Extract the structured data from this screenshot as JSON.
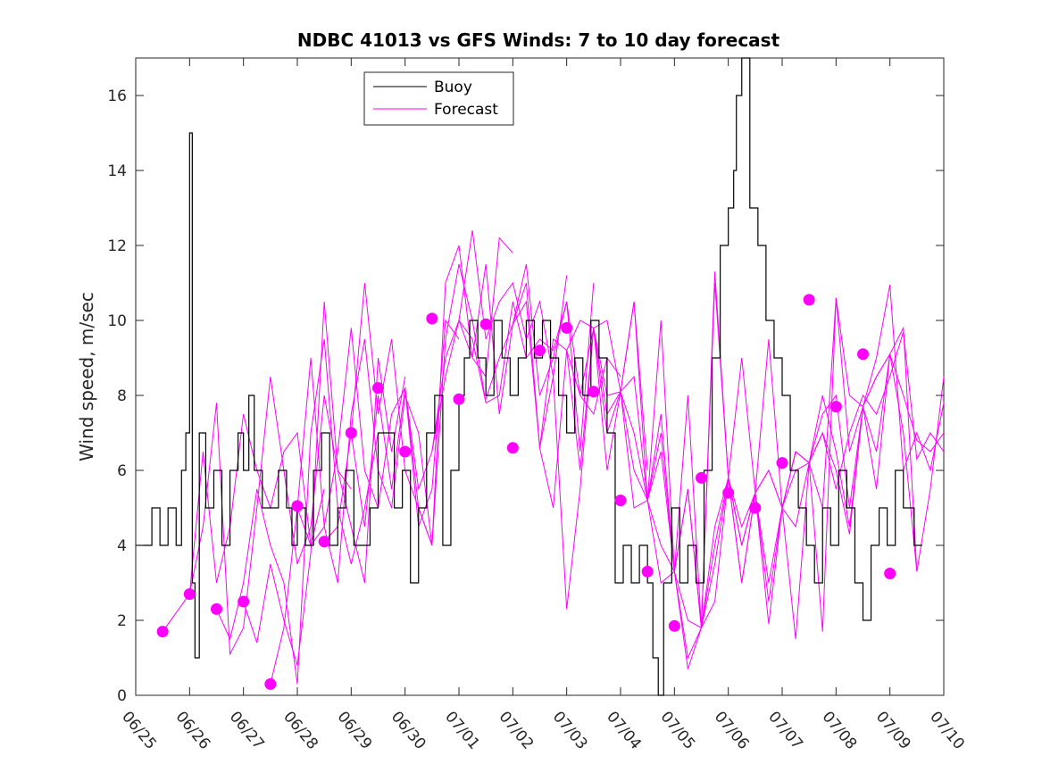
{
  "chart_data": {
    "type": "line",
    "title": "NDBC 41013 vs GFS Winds: 7 to 10 day forecast",
    "xlabel": "",
    "ylabel": "Wind speed, m/sec",
    "xlim": [
      0,
      15
    ],
    "ylim": [
      0,
      17
    ],
    "x_tick_values": [
      0,
      1,
      2,
      3,
      4,
      5,
      6,
      7,
      8,
      9,
      10,
      11,
      12,
      13,
      14,
      15
    ],
    "x_tick_labels": [
      "06/25",
      "06/26",
      "06/27",
      "06/28",
      "06/29",
      "06/30",
      "07/01",
      "07/02",
      "07/03",
      "07/04",
      "07/05",
      "07/06",
      "07/07",
      "07/08",
      "07/09",
      "07/10"
    ],
    "y_tick_values": [
      0,
      2,
      4,
      6,
      8,
      10,
      12,
      14,
      16
    ],
    "y_tick_labels": [
      "0",
      "2",
      "4",
      "6",
      "8",
      "10",
      "12",
      "14",
      "16"
    ],
    "grid": false,
    "legend": {
      "placement": "top-left",
      "entries": [
        {
          "name": "Buoy",
          "color": "#000000"
        },
        {
          "name": "Forecast",
          "color": "#ff00ff"
        }
      ]
    },
    "series": [
      {
        "name": "Buoy",
        "color": "#000000",
        "x": [
          0.0,
          0.15,
          0.3,
          0.45,
          0.6,
          0.75,
          0.85,
          0.93,
          1.0,
          1.05,
          1.1,
          1.18,
          1.3,
          1.45,
          1.6,
          1.75,
          1.9,
          2.0,
          2.1,
          2.2,
          2.35,
          2.5,
          2.65,
          2.8,
          2.9,
          3.0,
          3.15,
          3.3,
          3.45,
          3.6,
          3.75,
          3.9,
          4.05,
          4.2,
          4.35,
          4.5,
          4.65,
          4.8,
          4.95,
          5.1,
          5.25,
          5.4,
          5.55,
          5.7,
          5.85,
          6.0,
          6.1,
          6.2,
          6.35,
          6.5,
          6.65,
          6.8,
          6.95,
          7.1,
          7.25,
          7.4,
          7.55,
          7.7,
          7.85,
          8.0,
          8.15,
          8.3,
          8.45,
          8.6,
          8.75,
          8.9,
          9.05,
          9.2,
          9.35,
          9.5,
          9.6,
          9.7,
          9.8,
          9.95,
          10.1,
          10.25,
          10.4,
          10.55,
          10.7,
          10.85,
          11.0,
          11.1,
          11.15,
          11.25,
          11.4,
          11.55,
          11.7,
          11.85,
          12.0,
          12.15,
          12.3,
          12.45,
          12.6,
          12.75,
          12.9,
          13.05,
          13.2,
          13.35,
          13.5,
          13.65,
          13.8,
          13.95,
          14.1,
          14.25,
          14.45,
          14.6
        ],
        "values": [
          4,
          4,
          5,
          4,
          5,
          4,
          6,
          7,
          15,
          3,
          1,
          7,
          5,
          6,
          4,
          6,
          7,
          6,
          8,
          6,
          5,
          5,
          6,
          5,
          4,
          5,
          4,
          6,
          7,
          4,
          5,
          6,
          4,
          4,
          5,
          7,
          7,
          5,
          6,
          3,
          5,
          7,
          8,
          4,
          6,
          8,
          9,
          10,
          9,
          8,
          10,
          9,
          8,
          9,
          10,
          9,
          10,
          9,
          8,
          7,
          9,
          8,
          10,
          9,
          7,
          3,
          4,
          3,
          4,
          3,
          1,
          0,
          3,
          5,
          3,
          4,
          3,
          6,
          9,
          12,
          13,
          14,
          16,
          17,
          13,
          12,
          10,
          9,
          8,
          6,
          5,
          4,
          3,
          5,
          4,
          6,
          5,
          3,
          2,
          4,
          5,
          4,
          6,
          5,
          4,
          4
        ]
      },
      {
        "name": "Forecast",
        "color": "#ff00ff",
        "x": [
          0.5,
          1.0,
          1.25,
          1.5,
          1.75,
          2.0,
          2.25,
          2.5,
          2.75,
          3.0,
          3.25,
          3.5
        ],
        "values": [
          1.7,
          2.7,
          6.5,
          3.0,
          4.5,
          7.5,
          6.0,
          5.0,
          6.5,
          7.0,
          4.0,
          5.5
        ]
      },
      {
        "name": "",
        "color": "#ff00ff",
        "x": [
          1.0,
          1.25,
          1.5,
          1.75,
          2.0,
          2.25,
          2.5,
          2.75,
          3.0,
          3.25,
          3.5,
          3.75,
          4.0
        ],
        "values": [
          2.7,
          4.5,
          7.8,
          1.1,
          1.8,
          5.0,
          8.5,
          6.0,
          3.5,
          4.5,
          8.0,
          6.0,
          5.5
        ]
      },
      {
        "name": "",
        "color": "#ff00ff",
        "x": [
          1.5,
          1.75,
          2.0,
          2.25,
          2.5,
          2.75,
          3.0,
          3.25,
          3.5,
          3.75,
          4.0,
          4.25,
          4.5
        ],
        "values": [
          2.3,
          1.5,
          3.0,
          5.5,
          4.0,
          3.0,
          0.3,
          7.0,
          9.5,
          5.0,
          3.5,
          5.0,
          7.0
        ]
      },
      {
        "name": "",
        "color": "#ff00ff",
        "x": [
          2.0,
          2.25,
          2.5,
          2.75,
          3.0,
          3.25,
          3.5,
          3.75,
          4.0,
          4.25,
          4.5,
          4.75,
          5.0
        ],
        "values": [
          2.5,
          1.4,
          3.5,
          2.0,
          0.8,
          3.8,
          10.5,
          6.0,
          4.5,
          3.0,
          9.0,
          6.5,
          8.5
        ]
      },
      {
        "name": "",
        "color": "#ff00ff",
        "x": [
          2.5,
          2.75,
          3.0,
          3.25,
          3.5,
          3.75,
          4.0,
          4.25,
          4.5,
          4.75,
          5.0,
          5.25,
          5.5
        ],
        "values": [
          0.3,
          1.8,
          5.0,
          9.0,
          4.5,
          3.0,
          7.5,
          9.5,
          6.0,
          5.0,
          8.0,
          7.0,
          4.0
        ]
      },
      {
        "name": "",
        "color": "#ff00ff",
        "x": [
          3.0,
          3.25,
          3.5,
          3.75,
          4.0,
          4.25,
          4.5,
          4.75,
          5.0,
          5.25,
          5.5,
          5.75,
          6.0
        ],
        "values": [
          5.0,
          4.0,
          4.5,
          6.5,
          9.8,
          6.0,
          5.0,
          7.5,
          8.2,
          4.5,
          5.5,
          10.0,
          9.5
        ]
      },
      {
        "name": "",
        "color": "#ff00ff",
        "x": [
          3.5,
          3.75,
          4.0,
          4.25,
          4.5,
          4.75,
          5.0,
          5.25,
          5.5,
          5.75,
          6.0,
          6.25,
          6.5
        ],
        "values": [
          4.1,
          4.5,
          7.0,
          11.0,
          7.5,
          9.5,
          6.0,
          5.0,
          4.0,
          9.5,
          11.5,
          10.0,
          7.8
        ]
      },
      {
        "name": "",
        "color": "#ff00ff",
        "x": [
          4.0,
          4.25,
          4.5,
          4.75,
          5.0,
          5.25,
          5.5,
          5.75,
          6.0,
          6.25,
          6.5,
          6.75,
          7.0
        ],
        "values": [
          7.0,
          4.5,
          8.0,
          5.5,
          8.2,
          5.0,
          4.0,
          11.0,
          12.0,
          9.0,
          8.5,
          12.2,
          11.8
        ]
      },
      {
        "name": "",
        "color": "#ff00ff",
        "x": [
          5.0,
          5.25,
          5.5,
          5.75,
          6.0,
          6.25,
          6.5,
          6.75,
          7.0,
          7.25,
          7.5,
          7.75,
          8.0
        ],
        "values": [
          8.2,
          5.5,
          6.5,
          9.0,
          10.0,
          12.4,
          9.5,
          10.5,
          11.0,
          9.5,
          10.5,
          8.5,
          11.2
        ]
      },
      {
        "name": "",
        "color": "#ff00ff",
        "x": [
          5.5,
          5.75,
          6.0,
          6.25,
          6.5,
          6.75,
          7.0,
          7.25,
          7.5,
          7.75,
          8.0,
          8.25,
          8.5
        ],
        "values": [
          6.5,
          8.5,
          10.0,
          9.0,
          11.5,
          7.5,
          9.9,
          11.5,
          8.0,
          9.0,
          10.5,
          6.5,
          11.0
        ]
      },
      {
        "name": "",
        "color": "#ff00ff",
        "x": [
          6.0,
          6.25,
          6.5,
          6.75,
          7.0,
          7.25,
          7.5,
          7.75,
          8.0,
          8.25,
          8.5,
          8.75,
          9.0
        ],
        "values": [
          10.0,
          9.5,
          7.8,
          8.0,
          10.5,
          9.0,
          9.5,
          9.2,
          10.5,
          8.0,
          7.5,
          9.0,
          8.5
        ]
      },
      {
        "name": "",
        "color": "#ff00ff",
        "x": [
          6.5,
          6.75,
          7.0,
          7.25,
          7.5,
          7.75,
          8.0,
          8.25,
          8.5,
          8.75,
          9.0,
          9.25,
          9.5
        ],
        "values": [
          7.9,
          9.0,
          9.9,
          11.0,
          6.6,
          9.5,
          9.2,
          6.0,
          9.8,
          8.0,
          8.1,
          10.5,
          6.0
        ]
      },
      {
        "name": "",
        "color": "#ff00ff",
        "x": [
          7.0,
          7.25,
          7.5,
          7.75,
          8.0,
          8.25,
          8.5,
          8.75,
          9.0,
          9.25,
          9.5,
          9.75,
          10.0
        ],
        "values": [
          9.9,
          10.5,
          6.6,
          8.5,
          2.3,
          5.5,
          9.8,
          7.5,
          8.1,
          7.0,
          5.2,
          10.0,
          3.3
        ]
      },
      {
        "name": "",
        "color": "#ff00ff",
        "x": [
          7.5,
          7.75,
          8.0,
          8.25,
          8.5,
          8.75,
          9.0,
          9.25,
          9.5,
          9.75,
          10.0,
          10.25,
          10.5
        ],
        "values": [
          6.6,
          5.0,
          9.2,
          10.0,
          9.8,
          6.0,
          8.1,
          8.5,
          5.2,
          6.5,
          3.3,
          2.0,
          1.8
        ]
      },
      {
        "name": "",
        "color": "#ff00ff",
        "x": [
          8.0,
          8.25,
          8.5,
          8.75,
          9.0,
          9.25,
          9.5,
          9.75,
          10.0,
          10.25,
          10.5,
          10.75,
          11.0
        ],
        "values": [
          9.2,
          8.0,
          9.8,
          10.0,
          8.1,
          10.5,
          5.2,
          7.5,
          3.3,
          1.0,
          1.8,
          4.0,
          5.8
        ]
      },
      {
        "name": "",
        "color": "#ff00ff",
        "x": [
          8.5,
          8.75,
          9.0,
          9.25,
          9.5,
          9.75,
          10.0,
          10.25,
          10.5,
          10.75,
          11.0,
          11.25,
          11.5
        ],
        "values": [
          9.8,
          7.0,
          8.1,
          5.0,
          5.2,
          7.0,
          3.3,
          0.7,
          1.8,
          11.0,
          5.8,
          9.0,
          5.4
        ]
      },
      {
        "name": "",
        "color": "#ff00ff",
        "x": [
          9.0,
          9.25,
          9.5,
          9.75,
          10.0,
          10.25,
          10.5,
          10.75,
          11.0,
          11.25,
          11.5,
          11.75,
          12.0
        ],
        "values": [
          8.1,
          6.0,
          5.2,
          4.0,
          3.3,
          5.5,
          1.8,
          11.3,
          5.8,
          4.0,
          5.4,
          6.0,
          5.0
        ]
      },
      {
        "name": "",
        "color": "#ff00ff",
        "x": [
          9.5,
          9.75,
          10.0,
          10.25,
          10.5,
          10.75,
          11.0,
          11.25,
          11.5,
          11.75,
          12.0,
          12.25,
          12.5
        ],
        "values": [
          5.2,
          3.0,
          3.3,
          8.0,
          1.8,
          2.5,
          5.8,
          3.0,
          5.4,
          1.9,
          5.0,
          1.5,
          6.2
        ]
      },
      {
        "name": "",
        "color": "#ff00ff",
        "x": [
          10.0,
          10.25,
          10.5,
          10.75,
          11.0,
          11.25,
          11.5,
          11.75,
          12.0,
          12.25,
          12.5,
          12.75,
          13.0
        ],
        "values": [
          3.3,
          5.5,
          1.8,
          4.5,
          5.8,
          3.0,
          5.4,
          9.5,
          5.0,
          6.5,
          6.2,
          1.7,
          10.6
        ]
      },
      {
        "name": "",
        "color": "#ff00ff",
        "x": [
          10.5,
          10.75,
          11.0,
          11.25,
          11.5,
          11.75,
          12.0,
          12.25,
          12.5,
          12.75,
          13.0,
          13.25,
          13.5
        ],
        "values": [
          1.8,
          3.5,
          5.8,
          4.5,
          5.4,
          2.5,
          5.0,
          6.5,
          6.2,
          5.0,
          10.6,
          8.0,
          7.7
        ]
      },
      {
        "name": "",
        "color": "#ff00ff",
        "x": [
          11.0,
          11.25,
          11.5,
          11.75,
          12.0,
          12.25,
          12.5,
          12.75,
          13.0,
          13.25,
          13.5,
          13.75,
          14.0
        ],
        "values": [
          5.8,
          4.0,
          5.4,
          3.0,
          5.0,
          6.0,
          6.2,
          7.5,
          8.0,
          5.0,
          7.7,
          5.5,
          9.1
        ]
      },
      {
        "name": "",
        "color": "#ff00ff",
        "x": [
          11.5,
          11.75,
          12.0,
          12.25,
          12.5,
          12.75,
          13.0,
          13.25,
          13.5,
          13.75,
          14.0,
          14.25,
          14.5
        ],
        "values": [
          5.4,
          6.0,
          5.0,
          6.5,
          6.2,
          8.0,
          6.5,
          4.5,
          7.7,
          8.5,
          9.1,
          9.8,
          3.3
        ]
      },
      {
        "name": "",
        "color": "#ff00ff",
        "x": [
          12.0,
          12.25,
          12.5,
          12.75,
          13.0,
          13.25,
          13.5,
          13.75,
          14.0,
          14.25,
          14.5,
          14.75,
          15.0
        ],
        "values": [
          5.0,
          4.5,
          6.2,
          7.0,
          6.0,
          4.3,
          7.7,
          6.5,
          9.1,
          7.0,
          3.3,
          5.5,
          8.5
        ]
      },
      {
        "name": "",
        "color": "#ff00ff",
        "x": [
          12.5,
          12.75,
          13.0,
          13.25,
          13.5,
          13.75,
          14.0,
          14.25,
          14.5,
          14.75,
          15.0
        ],
        "values": [
          6.2,
          7.0,
          5.5,
          7.0,
          8.0,
          7.5,
          8.5,
          9.7,
          6.3,
          7.0,
          6.5
        ]
      },
      {
        "name": "",
        "color": "#ff00ff",
        "x": [
          13.0,
          13.25,
          13.5,
          13.75,
          14.0,
          14.25,
          14.5,
          14.75,
          15.0
        ],
        "values": [
          10.6,
          6.5,
          7.7,
          9.0,
          10.95,
          6.0,
          7.0,
          6.0,
          7.8
        ]
      },
      {
        "name": "",
        "color": "#ff00ff",
        "x": [
          13.5,
          13.75,
          14.0,
          14.25,
          14.5,
          14.75,
          15.0
        ],
        "values": [
          7.7,
          8.5,
          9.1,
          8.0,
          6.8,
          6.5,
          7.0
        ]
      }
    ],
    "forecast_markers": {
      "color": "#ff00ff",
      "x": [
        0.5,
        1.0,
        1.5,
        2.0,
        2.5,
        3.0,
        3.5,
        4.0,
        4.5,
        5.0,
        5.5,
        6.0,
        6.5,
        7.0,
        7.5,
        8.0,
        8.5,
        9.0,
        9.5,
        10.0,
        10.5,
        11.0,
        11.5,
        12.0,
        12.5,
        13.0,
        13.5,
        14.0,
        14.5
      ],
      "values": [
        1.7,
        2.7,
        2.3,
        2.5,
        0.3,
        5.05,
        4.1,
        7.0,
        8.2,
        6.5,
        10.05,
        7.9,
        9.9,
        6.6,
        9.2,
        9.8,
        8.1,
        5.2,
        3.3,
        1.85,
        5.8,
        5.4,
        5.0,
        6.2,
        10.55,
        7.7,
        9.1,
        3.25,
        null
      ]
    }
  }
}
